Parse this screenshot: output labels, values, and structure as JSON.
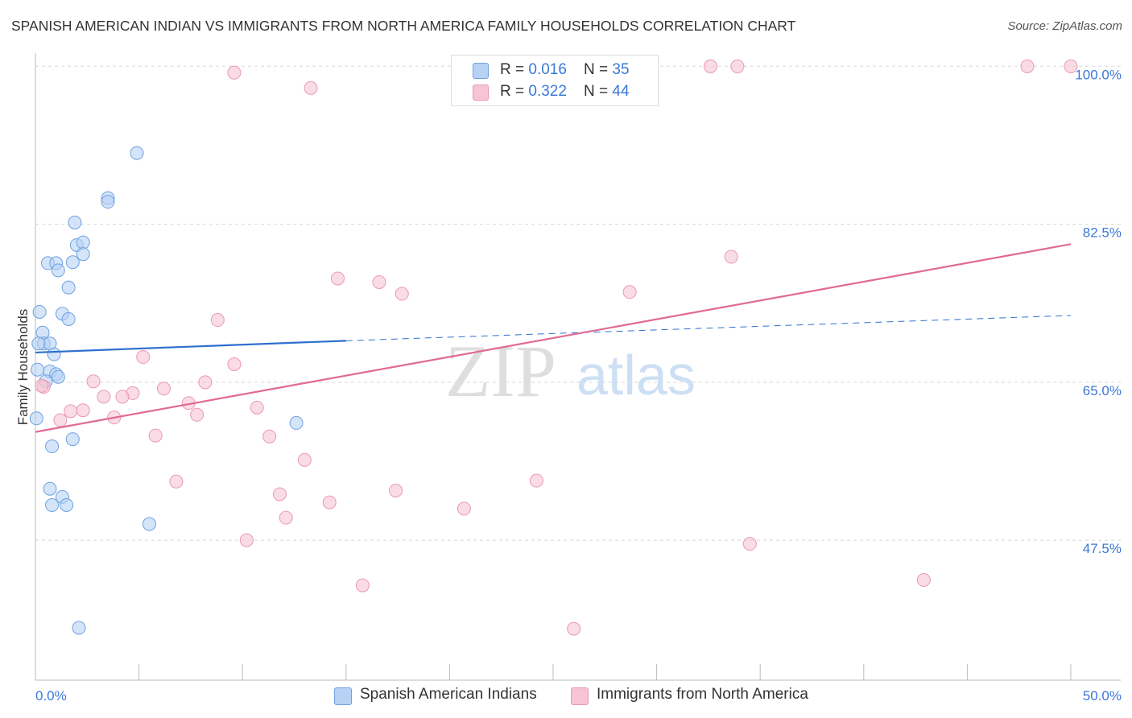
{
  "header": {
    "title": "SPANISH AMERICAN INDIAN VS IMMIGRANTS FROM NORTH AMERICA FAMILY HOUSEHOLDS CORRELATION CHART",
    "source": "Source: ZipAtlas.com"
  },
  "legend_top": {
    "rows": [
      {
        "r_label": "R = ",
        "r_value": "0.016",
        "n_label": "N = ",
        "n_value": "35"
      },
      {
        "r_label": "R = ",
        "r_value": "0.322",
        "n_label": "N = ",
        "n_value": "44"
      }
    ]
  },
  "legend_bottom": {
    "series1": "Spanish American Indians",
    "series2": "Immigrants from North America"
  },
  "watermark": {
    "zip": "ZIP",
    "atlas": "atlas"
  },
  "colors": {
    "blue_fill": "#b7d2f5",
    "blue_stroke": "#6fa1de",
    "blue_line": "#2f6fcf",
    "pink_fill": "#f7c4d3",
    "pink_stroke": "#eb98b3",
    "pink_line": "#e06a93",
    "tick_label": "#3b78d8",
    "grid": "#d8d8d8"
  },
  "chart_data": {
    "type": "scatter",
    "title": "SPANISH AMERICAN INDIAN VS IMMIGRANTS FROM NORTH AMERICA FAMILY HOUSEHOLDS CORRELATION CHART",
    "xlabel": "",
    "ylabel": "Family Households",
    "xlim": [
      0,
      50
    ],
    "ylim": [
      32,
      102
    ],
    "x_tick_labels": [
      "0.0%",
      "50.0%"
    ],
    "y_ticks": [
      47.5,
      65.0,
      82.5,
      100.0
    ],
    "y_tick_labels": [
      "47.5%",
      "65.0%",
      "82.5%",
      "100.0%"
    ],
    "grid": true,
    "series": [
      {
        "name": "Spanish American Indians",
        "R": 0.016,
        "N": 35,
        "points": [
          [
            4.9,
            90.4
          ],
          [
            3.5,
            85.4
          ],
          [
            3.5,
            85.0
          ],
          [
            1.9,
            82.7
          ],
          [
            2.0,
            80.2
          ],
          [
            2.3,
            80.5
          ],
          [
            2.3,
            79.2
          ],
          [
            0.6,
            78.2
          ],
          [
            1.0,
            78.2
          ],
          [
            1.8,
            78.3
          ],
          [
            1.1,
            77.4
          ],
          [
            1.6,
            75.5
          ],
          [
            0.2,
            72.8
          ],
          [
            1.3,
            72.6
          ],
          [
            1.6,
            72.0
          ],
          [
            0.35,
            70.5
          ],
          [
            0.4,
            69.3
          ],
          [
            0.7,
            69.3
          ],
          [
            0.9,
            68.1
          ],
          [
            0.1,
            66.4
          ],
          [
            0.7,
            66.2
          ],
          [
            1.0,
            65.9
          ],
          [
            1.1,
            65.6
          ],
          [
            0.5,
            65.1
          ],
          [
            0.05,
            61.0
          ],
          [
            12.6,
            60.5
          ],
          [
            1.8,
            58.7
          ],
          [
            0.8,
            57.9
          ],
          [
            0.7,
            53.2
          ],
          [
            1.3,
            52.3
          ],
          [
            0.8,
            51.4
          ],
          [
            1.5,
            51.4
          ],
          [
            5.5,
            49.3
          ],
          [
            2.1,
            37.8
          ],
          [
            0.15,
            69.3
          ]
        ],
        "trend": {
          "x": [
            0,
            15
          ],
          "y": [
            68.3,
            69.6
          ],
          "dashed_extension": {
            "x": [
              15,
              50
            ],
            "y": [
              69.6,
              72.4
            ]
          }
        }
      },
      {
        "name": "Immigrants from North America",
        "R": 0.322,
        "N": 44,
        "points": [
          [
            9.6,
            99.3
          ],
          [
            13.3,
            97.6
          ],
          [
            32.6,
            100.0
          ],
          [
            33.9,
            100.0
          ],
          [
            47.9,
            100.0
          ],
          [
            50.0,
            100.0
          ],
          [
            33.6,
            78.9
          ],
          [
            14.6,
            76.5
          ],
          [
            16.6,
            76.1
          ],
          [
            17.7,
            74.8
          ],
          [
            28.7,
            75.0
          ],
          [
            8.8,
            71.9
          ],
          [
            5.2,
            67.8
          ],
          [
            9.6,
            67.0
          ],
          [
            2.8,
            65.1
          ],
          [
            8.2,
            65.0
          ],
          [
            6.2,
            64.3
          ],
          [
            0.4,
            64.5
          ],
          [
            4.7,
            63.8
          ],
          [
            3.3,
            63.4
          ],
          [
            4.2,
            63.4
          ],
          [
            7.4,
            62.7
          ],
          [
            10.7,
            62.2
          ],
          [
            1.7,
            61.8
          ],
          [
            2.3,
            61.9
          ],
          [
            3.8,
            61.1
          ],
          [
            7.8,
            61.4
          ],
          [
            1.2,
            60.8
          ],
          [
            5.8,
            59.1
          ],
          [
            11.3,
            59.0
          ],
          [
            13.0,
            56.4
          ],
          [
            6.8,
            54.0
          ],
          [
            24.2,
            54.1
          ],
          [
            17.4,
            53.0
          ],
          [
            11.8,
            52.6
          ],
          [
            14.2,
            51.7
          ],
          [
            20.7,
            51.0
          ],
          [
            12.1,
            50.0
          ],
          [
            10.2,
            47.5
          ],
          [
            34.5,
            47.1
          ],
          [
            42.9,
            43.1
          ],
          [
            15.8,
            42.5
          ],
          [
            26.0,
            37.7
          ],
          [
            0.3,
            64.6
          ]
        ],
        "trend": {
          "x": [
            0,
            50
          ],
          "y": [
            59.5,
            80.3
          ]
        }
      }
    ]
  }
}
